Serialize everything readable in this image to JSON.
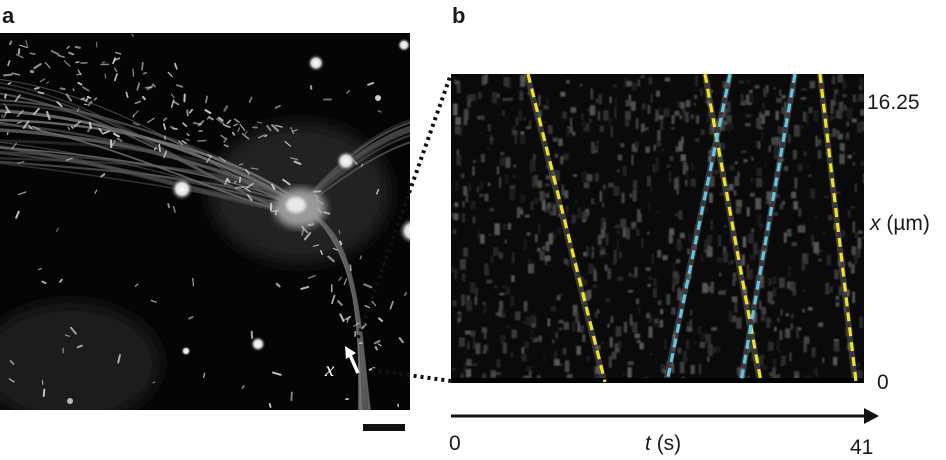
{
  "panels": {
    "a": {
      "letter": "a",
      "position_label": "x"
    },
    "b": {
      "letter": "b",
      "y_axis": {
        "symbol": "x",
        "unit": "(µm)",
        "top_tick": "16.25",
        "bottom_tick": "0"
      },
      "x_axis": {
        "symbol": "t",
        "unit": "(s)",
        "start_tick": "0",
        "end_tick": "41"
      }
    }
  },
  "colors": {
    "yellow_trace": "#f2e21a",
    "blue_trace": "#5fc6e6",
    "background": "#000000"
  }
}
